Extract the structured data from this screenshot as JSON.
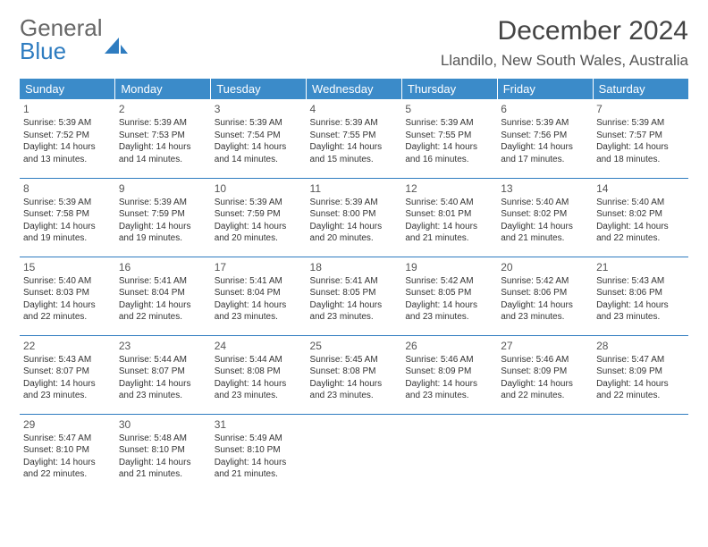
{
  "logo": {
    "word1": "General",
    "word2": "Blue"
  },
  "header": {
    "title": "December 2024",
    "location": "Llandilo, New South Wales, Australia"
  },
  "colors": {
    "header_bg": "#3b8bc9",
    "header_text": "#ffffff",
    "rule": "#2e7cc0",
    "logo_gray": "#666666",
    "logo_blue": "#2e7cc0"
  },
  "calendar": {
    "day_headers": [
      "Sunday",
      "Monday",
      "Tuesday",
      "Wednesday",
      "Thursday",
      "Friday",
      "Saturday"
    ],
    "weeks": [
      [
        {
          "n": "1",
          "sunrise": "5:39 AM",
          "sunset": "7:52 PM",
          "day_h": "14",
          "day_m": "13"
        },
        {
          "n": "2",
          "sunrise": "5:39 AM",
          "sunset": "7:53 PM",
          "day_h": "14",
          "day_m": "14"
        },
        {
          "n": "3",
          "sunrise": "5:39 AM",
          "sunset": "7:54 PM",
          "day_h": "14",
          "day_m": "14"
        },
        {
          "n": "4",
          "sunrise": "5:39 AM",
          "sunset": "7:55 PM",
          "day_h": "14",
          "day_m": "15"
        },
        {
          "n": "5",
          "sunrise": "5:39 AM",
          "sunset": "7:55 PM",
          "day_h": "14",
          "day_m": "16"
        },
        {
          "n": "6",
          "sunrise": "5:39 AM",
          "sunset": "7:56 PM",
          "day_h": "14",
          "day_m": "17"
        },
        {
          "n": "7",
          "sunrise": "5:39 AM",
          "sunset": "7:57 PM",
          "day_h": "14",
          "day_m": "18"
        }
      ],
      [
        {
          "n": "8",
          "sunrise": "5:39 AM",
          "sunset": "7:58 PM",
          "day_h": "14",
          "day_m": "19"
        },
        {
          "n": "9",
          "sunrise": "5:39 AM",
          "sunset": "7:59 PM",
          "day_h": "14",
          "day_m": "19"
        },
        {
          "n": "10",
          "sunrise": "5:39 AM",
          "sunset": "7:59 PM",
          "day_h": "14",
          "day_m": "20"
        },
        {
          "n": "11",
          "sunrise": "5:39 AM",
          "sunset": "8:00 PM",
          "day_h": "14",
          "day_m": "20"
        },
        {
          "n": "12",
          "sunrise": "5:40 AM",
          "sunset": "8:01 PM",
          "day_h": "14",
          "day_m": "21"
        },
        {
          "n": "13",
          "sunrise": "5:40 AM",
          "sunset": "8:02 PM",
          "day_h": "14",
          "day_m": "21"
        },
        {
          "n": "14",
          "sunrise": "5:40 AM",
          "sunset": "8:02 PM",
          "day_h": "14",
          "day_m": "22"
        }
      ],
      [
        {
          "n": "15",
          "sunrise": "5:40 AM",
          "sunset": "8:03 PM",
          "day_h": "14",
          "day_m": "22"
        },
        {
          "n": "16",
          "sunrise": "5:41 AM",
          "sunset": "8:04 PM",
          "day_h": "14",
          "day_m": "22"
        },
        {
          "n": "17",
          "sunrise": "5:41 AM",
          "sunset": "8:04 PM",
          "day_h": "14",
          "day_m": "23"
        },
        {
          "n": "18",
          "sunrise": "5:41 AM",
          "sunset": "8:05 PM",
          "day_h": "14",
          "day_m": "23"
        },
        {
          "n": "19",
          "sunrise": "5:42 AM",
          "sunset": "8:05 PM",
          "day_h": "14",
          "day_m": "23"
        },
        {
          "n": "20",
          "sunrise": "5:42 AM",
          "sunset": "8:06 PM",
          "day_h": "14",
          "day_m": "23"
        },
        {
          "n": "21",
          "sunrise": "5:43 AM",
          "sunset": "8:06 PM",
          "day_h": "14",
          "day_m": "23"
        }
      ],
      [
        {
          "n": "22",
          "sunrise": "5:43 AM",
          "sunset": "8:07 PM",
          "day_h": "14",
          "day_m": "23"
        },
        {
          "n": "23",
          "sunrise": "5:44 AM",
          "sunset": "8:07 PM",
          "day_h": "14",
          "day_m": "23"
        },
        {
          "n": "24",
          "sunrise": "5:44 AM",
          "sunset": "8:08 PM",
          "day_h": "14",
          "day_m": "23"
        },
        {
          "n": "25",
          "sunrise": "5:45 AM",
          "sunset": "8:08 PM",
          "day_h": "14",
          "day_m": "23"
        },
        {
          "n": "26",
          "sunrise": "5:46 AM",
          "sunset": "8:09 PM",
          "day_h": "14",
          "day_m": "23"
        },
        {
          "n": "27",
          "sunrise": "5:46 AM",
          "sunset": "8:09 PM",
          "day_h": "14",
          "day_m": "22"
        },
        {
          "n": "28",
          "sunrise": "5:47 AM",
          "sunset": "8:09 PM",
          "day_h": "14",
          "day_m": "22"
        }
      ],
      [
        {
          "n": "29",
          "sunrise": "5:47 AM",
          "sunset": "8:10 PM",
          "day_h": "14",
          "day_m": "22"
        },
        {
          "n": "30",
          "sunrise": "5:48 AM",
          "sunset": "8:10 PM",
          "day_h": "14",
          "day_m": "21"
        },
        {
          "n": "31",
          "sunrise": "5:49 AM",
          "sunset": "8:10 PM",
          "day_h": "14",
          "day_m": "21"
        },
        null,
        null,
        null,
        null
      ]
    ]
  },
  "labels": {
    "sunrise_prefix": "Sunrise: ",
    "sunset_prefix": "Sunset: ",
    "daylight_prefix": "Daylight: ",
    "hours_word": " hours",
    "and_word": "and ",
    "minutes_word": " minutes."
  }
}
